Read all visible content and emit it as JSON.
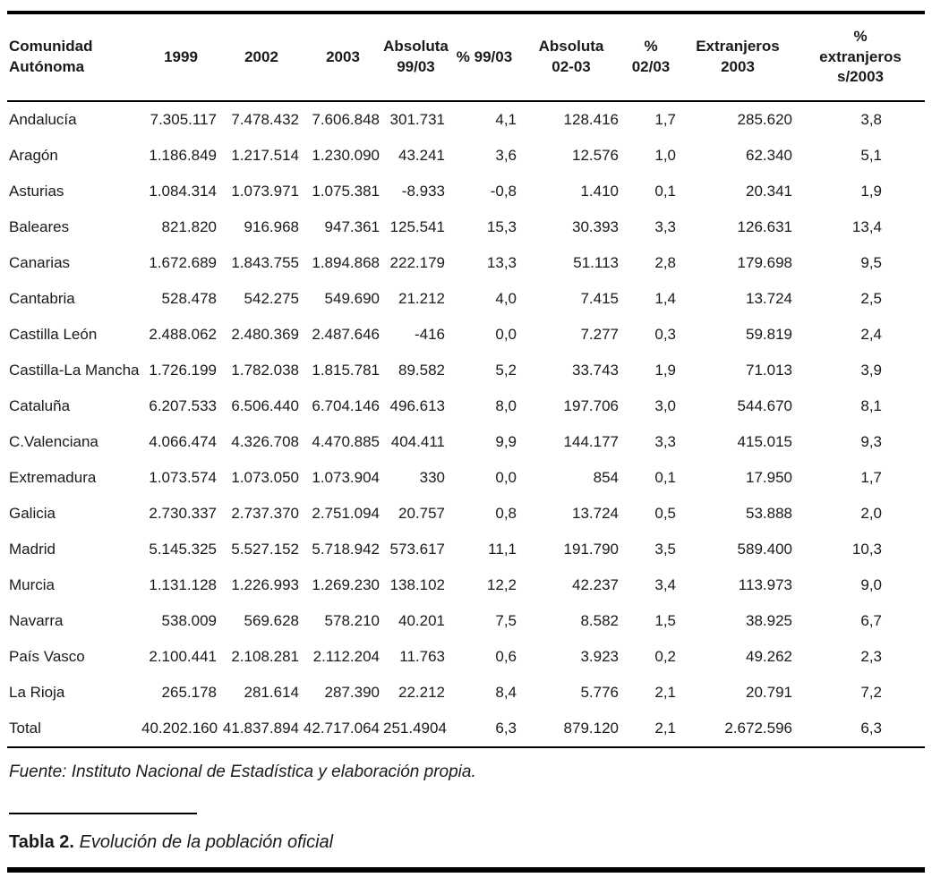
{
  "page": {
    "background": "#ffffff",
    "text_color": "#1a1a1a",
    "rule_color": "#000000"
  },
  "table": {
    "headers": [
      {
        "id": "comunidad",
        "lines": [
          "Comunidad",
          "Autónoma"
        ]
      },
      {
        "id": "1999",
        "lines": [
          "1999"
        ]
      },
      {
        "id": "2002",
        "lines": [
          "2002"
        ]
      },
      {
        "id": "2003",
        "lines": [
          "2003"
        ]
      },
      {
        "id": "absoluta-99-03",
        "lines": [
          "Absoluta",
          "99/03"
        ]
      },
      {
        "id": "pct-99-03",
        "lines": [
          "% 99/03"
        ]
      },
      {
        "id": "absoluta-02-03",
        "lines": [
          "Absoluta",
          "02-03"
        ]
      },
      {
        "id": "pct-02-03",
        "lines": [
          "%",
          "02/03"
        ]
      },
      {
        "id": "extranjeros-2003",
        "lines": [
          "Extranjeros",
          "2003"
        ]
      },
      {
        "id": "pct-extranjeros-2003",
        "lines": [
          "%",
          "extranjeros",
          "s/2003"
        ]
      }
    ],
    "rows": [
      [
        "Andalucía",
        "7.305.117",
        "7.478.432",
        "7.606.848",
        "301.731",
        "4,1",
        "128.416",
        "1,7",
        "285.620",
        "3,8"
      ],
      [
        "Aragón",
        "1.186.849",
        "1.217.514",
        "1.230.090",
        "43.241",
        "3,6",
        "12.576",
        "1,0",
        "62.340",
        "5,1"
      ],
      [
        "Asturias",
        "1.084.314",
        "1.073.971",
        "1.075.381",
        "-8.933",
        "-0,8",
        "1.410",
        "0,1",
        "20.341",
        "1,9"
      ],
      [
        "Baleares",
        "821.820",
        "916.968",
        "947.361",
        "125.541",
        "15,3",
        "30.393",
        "3,3",
        "126.631",
        "13,4"
      ],
      [
        "Canarias",
        "1.672.689",
        "1.843.755",
        "1.894.868",
        "222.179",
        "13,3",
        "51.113",
        "2,8",
        "179.698",
        "9,5"
      ],
      [
        "Cantabria",
        "528.478",
        "542.275",
        "549.690",
        "21.212",
        "4,0",
        "7.415",
        "1,4",
        "13.724",
        "2,5"
      ],
      [
        "Castilla León",
        "2.488.062",
        "2.480.369",
        "2.487.646",
        "-416",
        "0,0",
        "7.277",
        "0,3",
        "59.819",
        "2,4"
      ],
      [
        "Castilla-La Mancha",
        "1.726.199",
        "1.782.038",
        "1.815.781",
        "89.582",
        "5,2",
        "33.743",
        "1,9",
        "71.013",
        "3,9"
      ],
      [
        "Cataluña",
        "6.207.533",
        "6.506.440",
        "6.704.146",
        "496.613",
        "8,0",
        "197.706",
        "3,0",
        "544.670",
        "8,1"
      ],
      [
        "C.Valenciana",
        "4.066.474",
        "4.326.708",
        "4.470.885",
        "404.411",
        "9,9",
        "144.177",
        "3,3",
        "415.015",
        "9,3"
      ],
      [
        "Extremadura",
        "1.073.574",
        "1.073.050",
        "1.073.904",
        "330",
        "0,0",
        "854",
        "0,1",
        "17.950",
        "1,7"
      ],
      [
        "Galicia",
        "2.730.337",
        "2.737.370",
        "2.751.094",
        "20.757",
        "0,8",
        "13.724",
        "0,5",
        "53.888",
        "2,0"
      ],
      [
        "Madrid",
        "5.145.325",
        "5.527.152",
        "5.718.942",
        "573.617",
        "11,1",
        "191.790",
        "3,5",
        "589.400",
        "10,3"
      ],
      [
        "Murcia",
        "1.131.128",
        "1.226.993",
        "1.269.230",
        "138.102",
        "12,2",
        "42.237",
        "3,4",
        "113.973",
        "9,0"
      ],
      [
        "Navarra",
        "538.009",
        "569.628",
        "578.210",
        "40.201",
        "7,5",
        "8.582",
        "1,5",
        "38.925",
        "6,7"
      ],
      [
        "País Vasco",
        "2.100.441",
        "2.108.281",
        "2.112.204",
        "11.763",
        "0,6",
        "3.923",
        "0,2",
        "49.262",
        "2,3"
      ],
      [
        "La Rioja",
        "265.178",
        "281.614",
        "287.390",
        "22.212",
        "8,4",
        "5.776",
        "2,1",
        "20.791",
        "7,2"
      ],
      [
        "Total",
        "40.202.160",
        "41.837.894",
        "42.717.064",
        "251.4904",
        "6,3",
        "879.120",
        "2,1",
        "2.672.596",
        "6,3"
      ]
    ]
  },
  "footer": {
    "source": "Fuente: Instituto Nacional de Estadística y elaboración propia.",
    "caption_label": "Tabla 2.",
    "caption_text": "Evolución de la población oficial"
  }
}
